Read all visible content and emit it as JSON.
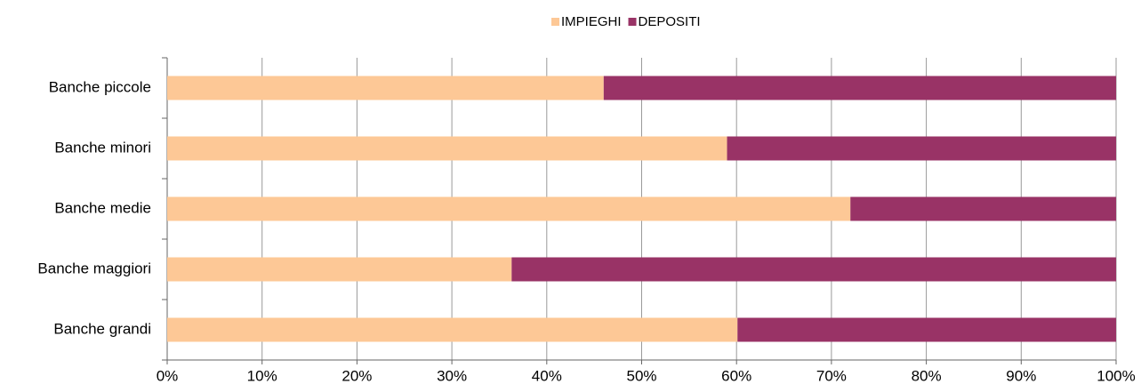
{
  "chart_data": {
    "type": "stacked-barh",
    "categories": [
      "Banche piccole",
      "Banche minori",
      "Banche medie",
      "Banche maggiori",
      "Banche grandi"
    ],
    "series": [
      {
        "name": "IMPIEGHI",
        "color": "#fdc896",
        "values": [
          46,
          59,
          72,
          36.3,
          60.1
        ]
      },
      {
        "name": "DEPOSITI",
        "color": "#993366",
        "values": [
          54,
          41,
          28,
          63.7,
          39.9
        ]
      }
    ],
    "xlim": [
      0,
      100
    ],
    "xticks": [
      {
        "value": 0,
        "label": "0%"
      },
      {
        "value": 10,
        "label": "10%"
      },
      {
        "value": 20,
        "label": "20%"
      },
      {
        "value": 30,
        "label": "30%"
      },
      {
        "value": 40,
        "label": "40%"
      },
      {
        "value": 50,
        "label": "50%"
      },
      {
        "value": 60,
        "label": "60%"
      },
      {
        "value": 70,
        "label": "70%"
      },
      {
        "value": 80,
        "label": "80%"
      },
      {
        "value": 90,
        "label": "90%"
      },
      {
        "value": 100,
        "label": "100%"
      }
    ],
    "grid": true,
    "legend": "top"
  }
}
